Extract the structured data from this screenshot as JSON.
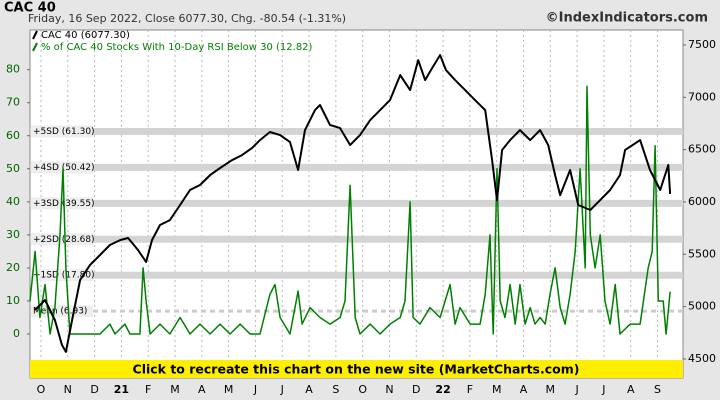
{
  "chart_data": {
    "type": "line",
    "title": "CAC 40",
    "subtitle": "Friday, 16 Sep 2022, Close 6077.30, Chg. -80.54 (-1.31%)",
    "watermark": "©IndexIndicators.com",
    "banner": "Click to recreate this chart on the new site (MarketCharts.com)",
    "xlim": [
      -0.41,
      23.95
    ],
    "xticks": [
      {
        "value": 0,
        "label": "O"
      },
      {
        "value": 1,
        "label": "N"
      },
      {
        "value": 2,
        "label": "D"
      },
      {
        "value": 3,
        "label": "21"
      },
      {
        "value": 4,
        "label": "F"
      },
      {
        "value": 5,
        "label": "M"
      },
      {
        "value": 6,
        "label": "A"
      },
      {
        "value": 7,
        "label": "M"
      },
      {
        "value": 8,
        "label": "J"
      },
      {
        "value": 9,
        "label": "J"
      },
      {
        "value": 10,
        "label": "A"
      },
      {
        "value": 11,
        "label": "S"
      },
      {
        "value": 12,
        "label": "O"
      },
      {
        "value": 13,
        "label": "N"
      },
      {
        "value": 14,
        "label": "D"
      },
      {
        "value": 15,
        "label": "22"
      },
      {
        "value": 16,
        "label": "F"
      },
      {
        "value": 17,
        "label": "M"
      },
      {
        "value": 18,
        "label": "A"
      },
      {
        "value": 19,
        "label": "M"
      },
      {
        "value": 20,
        "label": "J"
      },
      {
        "value": 21,
        "label": "J"
      },
      {
        "value": 22,
        "label": "A"
      },
      {
        "value": 23,
        "label": "S"
      }
    ],
    "ylim": [
      -13.3,
      92
    ],
    "yticks": [
      0,
      10,
      20,
      30,
      40,
      50,
      60,
      70,
      80
    ],
    "y2lim": [
      4318,
      7643
    ],
    "y2ticks": [
      4500,
      5000,
      5500,
      6000,
      6500,
      7000,
      7500
    ],
    "reference_lines": [
      {
        "label": "+5SD (61.30)",
        "value": 61.3
      },
      {
        "label": "+4SD (50.42)",
        "value": 50.42
      },
      {
        "label": "+3SD (39.55)",
        "value": 39.55
      },
      {
        "label": "+2SD (28.68)",
        "value": 28.68
      },
      {
        "label": "+1SD (17.80)",
        "value": 17.8
      },
      {
        "label": "Mean (6.93)",
        "value": 6.93
      }
    ],
    "series": [
      {
        "name": "CAC 40 (6077.30)",
        "color": "#000000",
        "axis": "y2",
        "x": [
          -0.22,
          0.15,
          0.52,
          0.78,
          0.93,
          1.16,
          1.46,
          1.83,
          2.2,
          2.57,
          2.95,
          3.25,
          3.62,
          3.92,
          4.14,
          4.44,
          4.81,
          5.19,
          5.56,
          5.93,
          6.31,
          6.68,
          7.13,
          7.5,
          7.87,
          8.17,
          8.54,
          8.92,
          9.29,
          9.59,
          9.85,
          10.22,
          10.41,
          10.78,
          11.16,
          11.53,
          11.9,
          12.28,
          12.65,
          13.02,
          13.4,
          13.77,
          14.07,
          14.33,
          14.59,
          14.89,
          15.11,
          15.45,
          15.82,
          16.19,
          16.57,
          16.83,
          17.01,
          17.2,
          17.5,
          17.87,
          18.25,
          18.62,
          18.92,
          19.18,
          19.37,
          19.74,
          20.04,
          20.49,
          20.86,
          21.23,
          21.6,
          21.79,
          22.35,
          22.72,
          23.1,
          23.4,
          23.47
        ],
        "values": [
          4968,
          5063,
          4872,
          4634,
          4567,
          4872,
          5254,
          5398,
          5493,
          5589,
          5636,
          5656,
          5541,
          5426,
          5636,
          5780,
          5827,
          5971,
          6114,
          6162,
          6257,
          6324,
          6400,
          6448,
          6515,
          6591,
          6668,
          6639,
          6572,
          6305,
          6687,
          6878,
          6926,
          6735,
          6706,
          6544,
          6639,
          6782,
          6878,
          6973,
          7212,
          7069,
          7355,
          7164,
          7279,
          7403,
          7260,
          7164,
          7069,
          6973,
          6878,
          6400,
          6018,
          6496,
          6591,
          6687,
          6591,
          6687,
          6544,
          6257,
          6066,
          6305,
          5971,
          5923,
          6018,
          6114,
          6257,
          6496,
          6591,
          6305,
          6114,
          6353,
          6077.3
        ]
      },
      {
        "name": "% of CAC 40 Stocks With 10-Day RSI Below 30 (12.82)",
        "color": "#008000",
        "x": [
          -0.41,
          -0.22,
          -0.04,
          0.15,
          0.34,
          0.52,
          0.71,
          0.82,
          0.93,
          1.08,
          1.46,
          2.2,
          2.57,
          2.76,
          3.13,
          3.32,
          3.69,
          3.81,
          3.92,
          4.07,
          4.44,
          4.81,
          5.19,
          5.56,
          5.93,
          6.31,
          6.68,
          7.05,
          7.43,
          7.8,
          8.17,
          8.54,
          8.73,
          8.92,
          9.29,
          9.59,
          9.74,
          10.04,
          10.41,
          10.78,
          11.16,
          11.34,
          11.53,
          11.72,
          11.9,
          12.28,
          12.65,
          13.02,
          13.4,
          13.58,
          13.77,
          13.88,
          14.14,
          14.51,
          14.89,
          15.26,
          15.45,
          15.63,
          16.01,
          16.38,
          16.57,
          16.75,
          16.87,
          17.01,
          17.13,
          17.31,
          17.5,
          17.69,
          17.87,
          18.06,
          18.25,
          18.43,
          18.62,
          18.81,
          18.99,
          19.18,
          19.37,
          19.55,
          19.74,
          19.93,
          20.11,
          20.3,
          20.37,
          20.49,
          20.67,
          20.86,
          21.04,
          21.23,
          21.42,
          21.6,
          21.98,
          22.35,
          22.65,
          22.8,
          22.91,
          23.03,
          23.21,
          23.32,
          23.47
        ],
        "values": [
          10,
          25,
          5,
          15,
          0,
          8,
          30,
          50,
          20,
          0,
          0,
          0,
          3,
          0,
          3,
          0,
          0,
          20,
          10,
          0,
          3,
          0,
          5,
          0,
          3,
          0,
          3,
          0,
          3,
          0,
          0,
          12,
          15,
          5,
          0,
          13,
          3,
          8,
          5,
          3,
          5,
          10,
          45,
          5,
          0,
          3,
          0,
          3,
          5,
          10,
          40,
          5,
          3,
          8,
          5,
          15,
          3,
          8,
          3,
          3,
          12,
          30,
          0,
          50,
          10,
          5,
          15,
          3,
          15,
          3,
          8,
          3,
          5,
          3,
          12,
          20,
          8,
          3,
          12,
          25,
          50,
          20,
          75,
          30,
          20,
          30,
          10,
          3,
          15,
          0,
          3,
          3,
          20,
          25,
          57,
          10,
          10,
          0,
          12.82
        ]
      }
    ]
  }
}
